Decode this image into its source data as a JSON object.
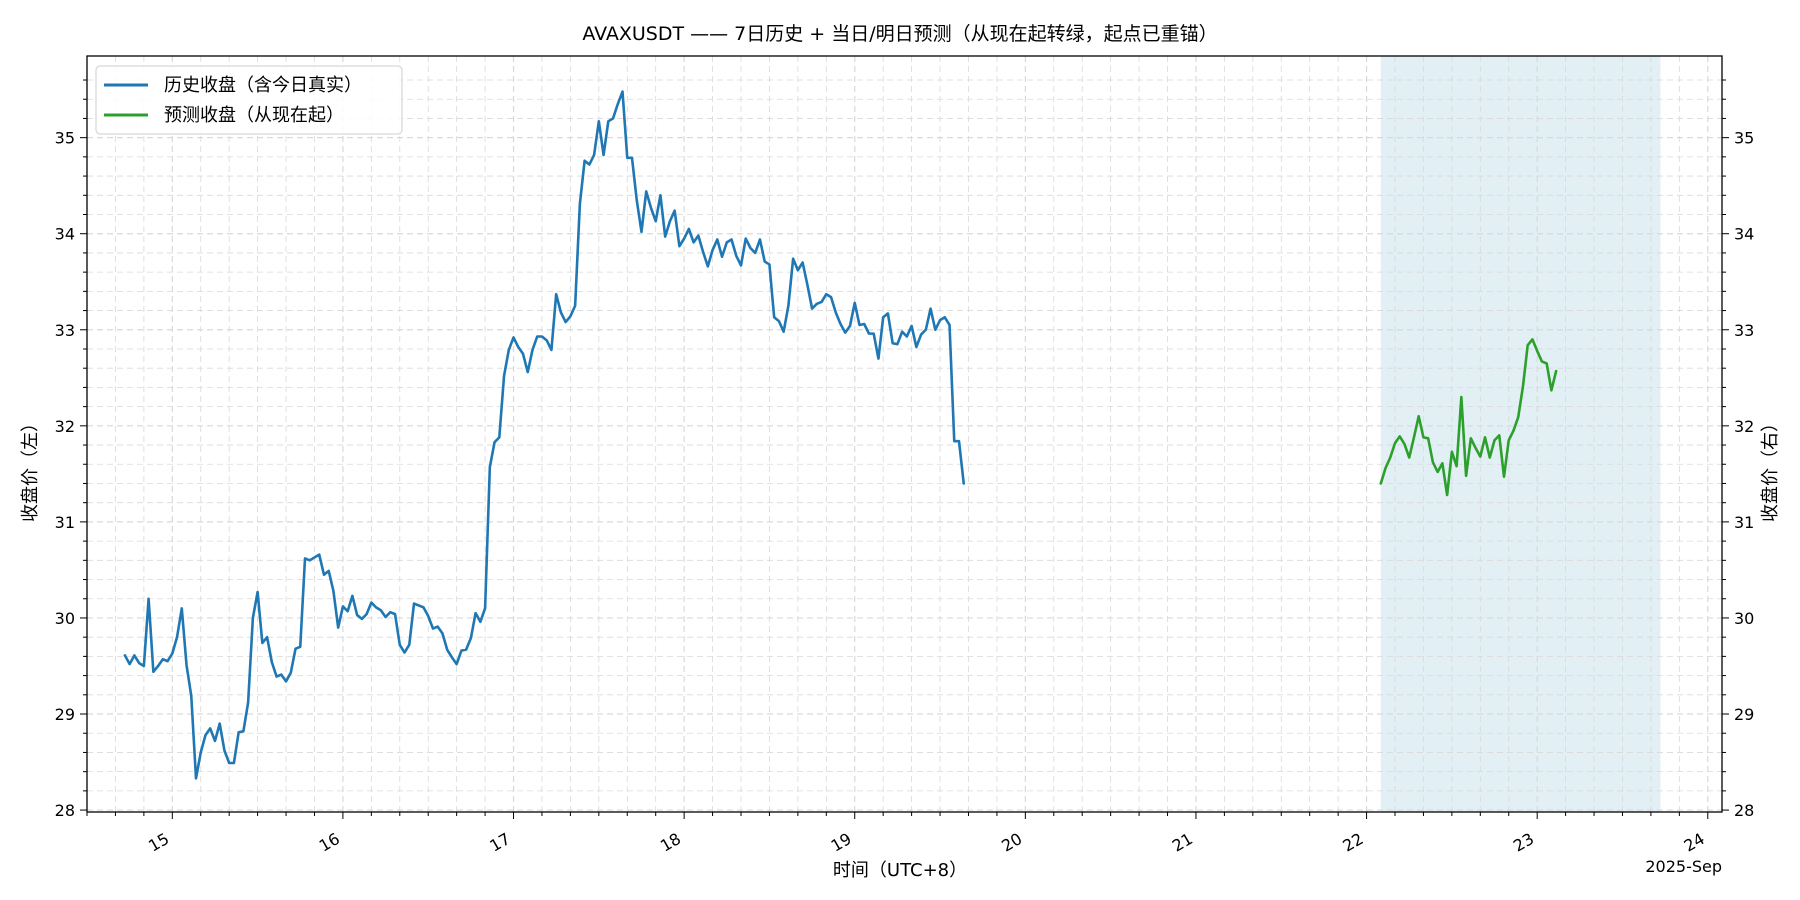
{
  "chart_data": {
    "type": "line",
    "title": "AVAXUSDT —— 7日历史 + 当日/明日预测（从现在起转绿，起点已重锚）",
    "xlabel": "时间（UTC+8）",
    "ylabel_left": "收盘价（左）",
    "ylabel_right": "收盘价（右）",
    "x_offset_label": "2025-Sep",
    "xlim": [
      "2025-09-14 12:00",
      "2025-09-24 02:00"
    ],
    "ylim": [
      27.98,
      35.85
    ],
    "x_ticks": [
      "15",
      "16",
      "17",
      "18",
      "19",
      "20",
      "21",
      "22",
      "23",
      "24"
    ],
    "y_ticks": [
      "28",
      "29",
      "30",
      "31",
      "32",
      "33",
      "34",
      "35"
    ],
    "grid": true,
    "legend_position": "top-left",
    "forecast_shade": {
      "x_start": "2025-09-22 02:00",
      "x_end": "2025-09-23 17:20",
      "color": "#c6dfea"
    },
    "colors": {
      "history": "#1f77b4",
      "forecast": "#2ca02c"
    },
    "series": [
      {
        "name": "历史收盘（含今日真实）",
        "x_start": "2025-09-14 17:20",
        "step_minutes": 40,
        "values": [
          29.61,
          29.52,
          29.61,
          29.53,
          29.5,
          30.2,
          29.44,
          29.5,
          29.57,
          29.55,
          29.63,
          29.8,
          30.1,
          29.51,
          29.19,
          28.33,
          28.6,
          28.78,
          28.85,
          28.72,
          28.9,
          28.62,
          28.49,
          28.49,
          28.81,
          28.82,
          29.12,
          30.0,
          30.27,
          29.74,
          29.8,
          29.54,
          29.39,
          29.41,
          29.34,
          29.43,
          29.68,
          29.7,
          30.62,
          30.6,
          30.63,
          30.66,
          30.45,
          30.49,
          30.28,
          29.9,
          30.12,
          30.07,
          30.23,
          30.03,
          29.99,
          30.04,
          30.16,
          30.11,
          30.08,
          30.01,
          30.06,
          30.04,
          29.72,
          29.64,
          29.72,
          30.15,
          30.13,
          30.11,
          30.02,
          29.89,
          29.91,
          29.84,
          29.67,
          29.59,
          29.52,
          29.66,
          29.67,
          29.79,
          30.05,
          29.96,
          30.1,
          31.57,
          31.83,
          31.88,
          32.52,
          32.79,
          32.92,
          32.82,
          32.75,
          32.56,
          32.79,
          32.93,
          32.93,
          32.89,
          32.79,
          33.37,
          33.18,
          33.08,
          33.14,
          33.25,
          34.31,
          34.76,
          34.72,
          34.82,
          35.17,
          34.82,
          35.17,
          35.2,
          35.35,
          35.48,
          34.79,
          34.79,
          34.35,
          34.02,
          34.44,
          34.27,
          34.13,
          34.4,
          33.97,
          34.13,
          34.24,
          33.87,
          33.95,
          34.05,
          33.91,
          33.98,
          33.81,
          33.66,
          33.83,
          33.94,
          33.76,
          33.91,
          33.94,
          33.77,
          33.67,
          33.95,
          33.85,
          33.8,
          33.94,
          33.71,
          33.68,
          33.13,
          33.09,
          32.98,
          33.25,
          33.74,
          33.62,
          33.7,
          33.47,
          33.22,
          33.27,
          33.29,
          33.37,
          33.34,
          33.18,
          33.06,
          32.97,
          33.04,
          33.28,
          33.05,
          33.06,
          32.96,
          32.96,
          32.7,
          33.13,
          33.17,
          32.86,
          32.85,
          32.98,
          32.93,
          33.04,
          32.82,
          32.95,
          33.0,
          33.22,
          33.0,
          33.1,
          33.13,
          33.05,
          31.84,
          31.84,
          31.4
        ]
      },
      {
        "name": "预测收盘（从现在起）",
        "x_start": "2025-09-22 02:00",
        "step_minutes": 40,
        "values": [
          31.4,
          31.56,
          31.67,
          31.82,
          31.89,
          31.81,
          31.67,
          31.88,
          32.1,
          31.88,
          31.87,
          31.62,
          31.52,
          31.61,
          31.28,
          31.73,
          31.58,
          32.3,
          31.48,
          31.87,
          31.77,
          31.68,
          31.88,
          31.67,
          31.85,
          31.9,
          31.47,
          31.85,
          31.95,
          32.09,
          32.41,
          32.84,
          32.9,
          32.78,
          32.67,
          32.65,
          32.37,
          32.57
        ]
      }
    ]
  }
}
